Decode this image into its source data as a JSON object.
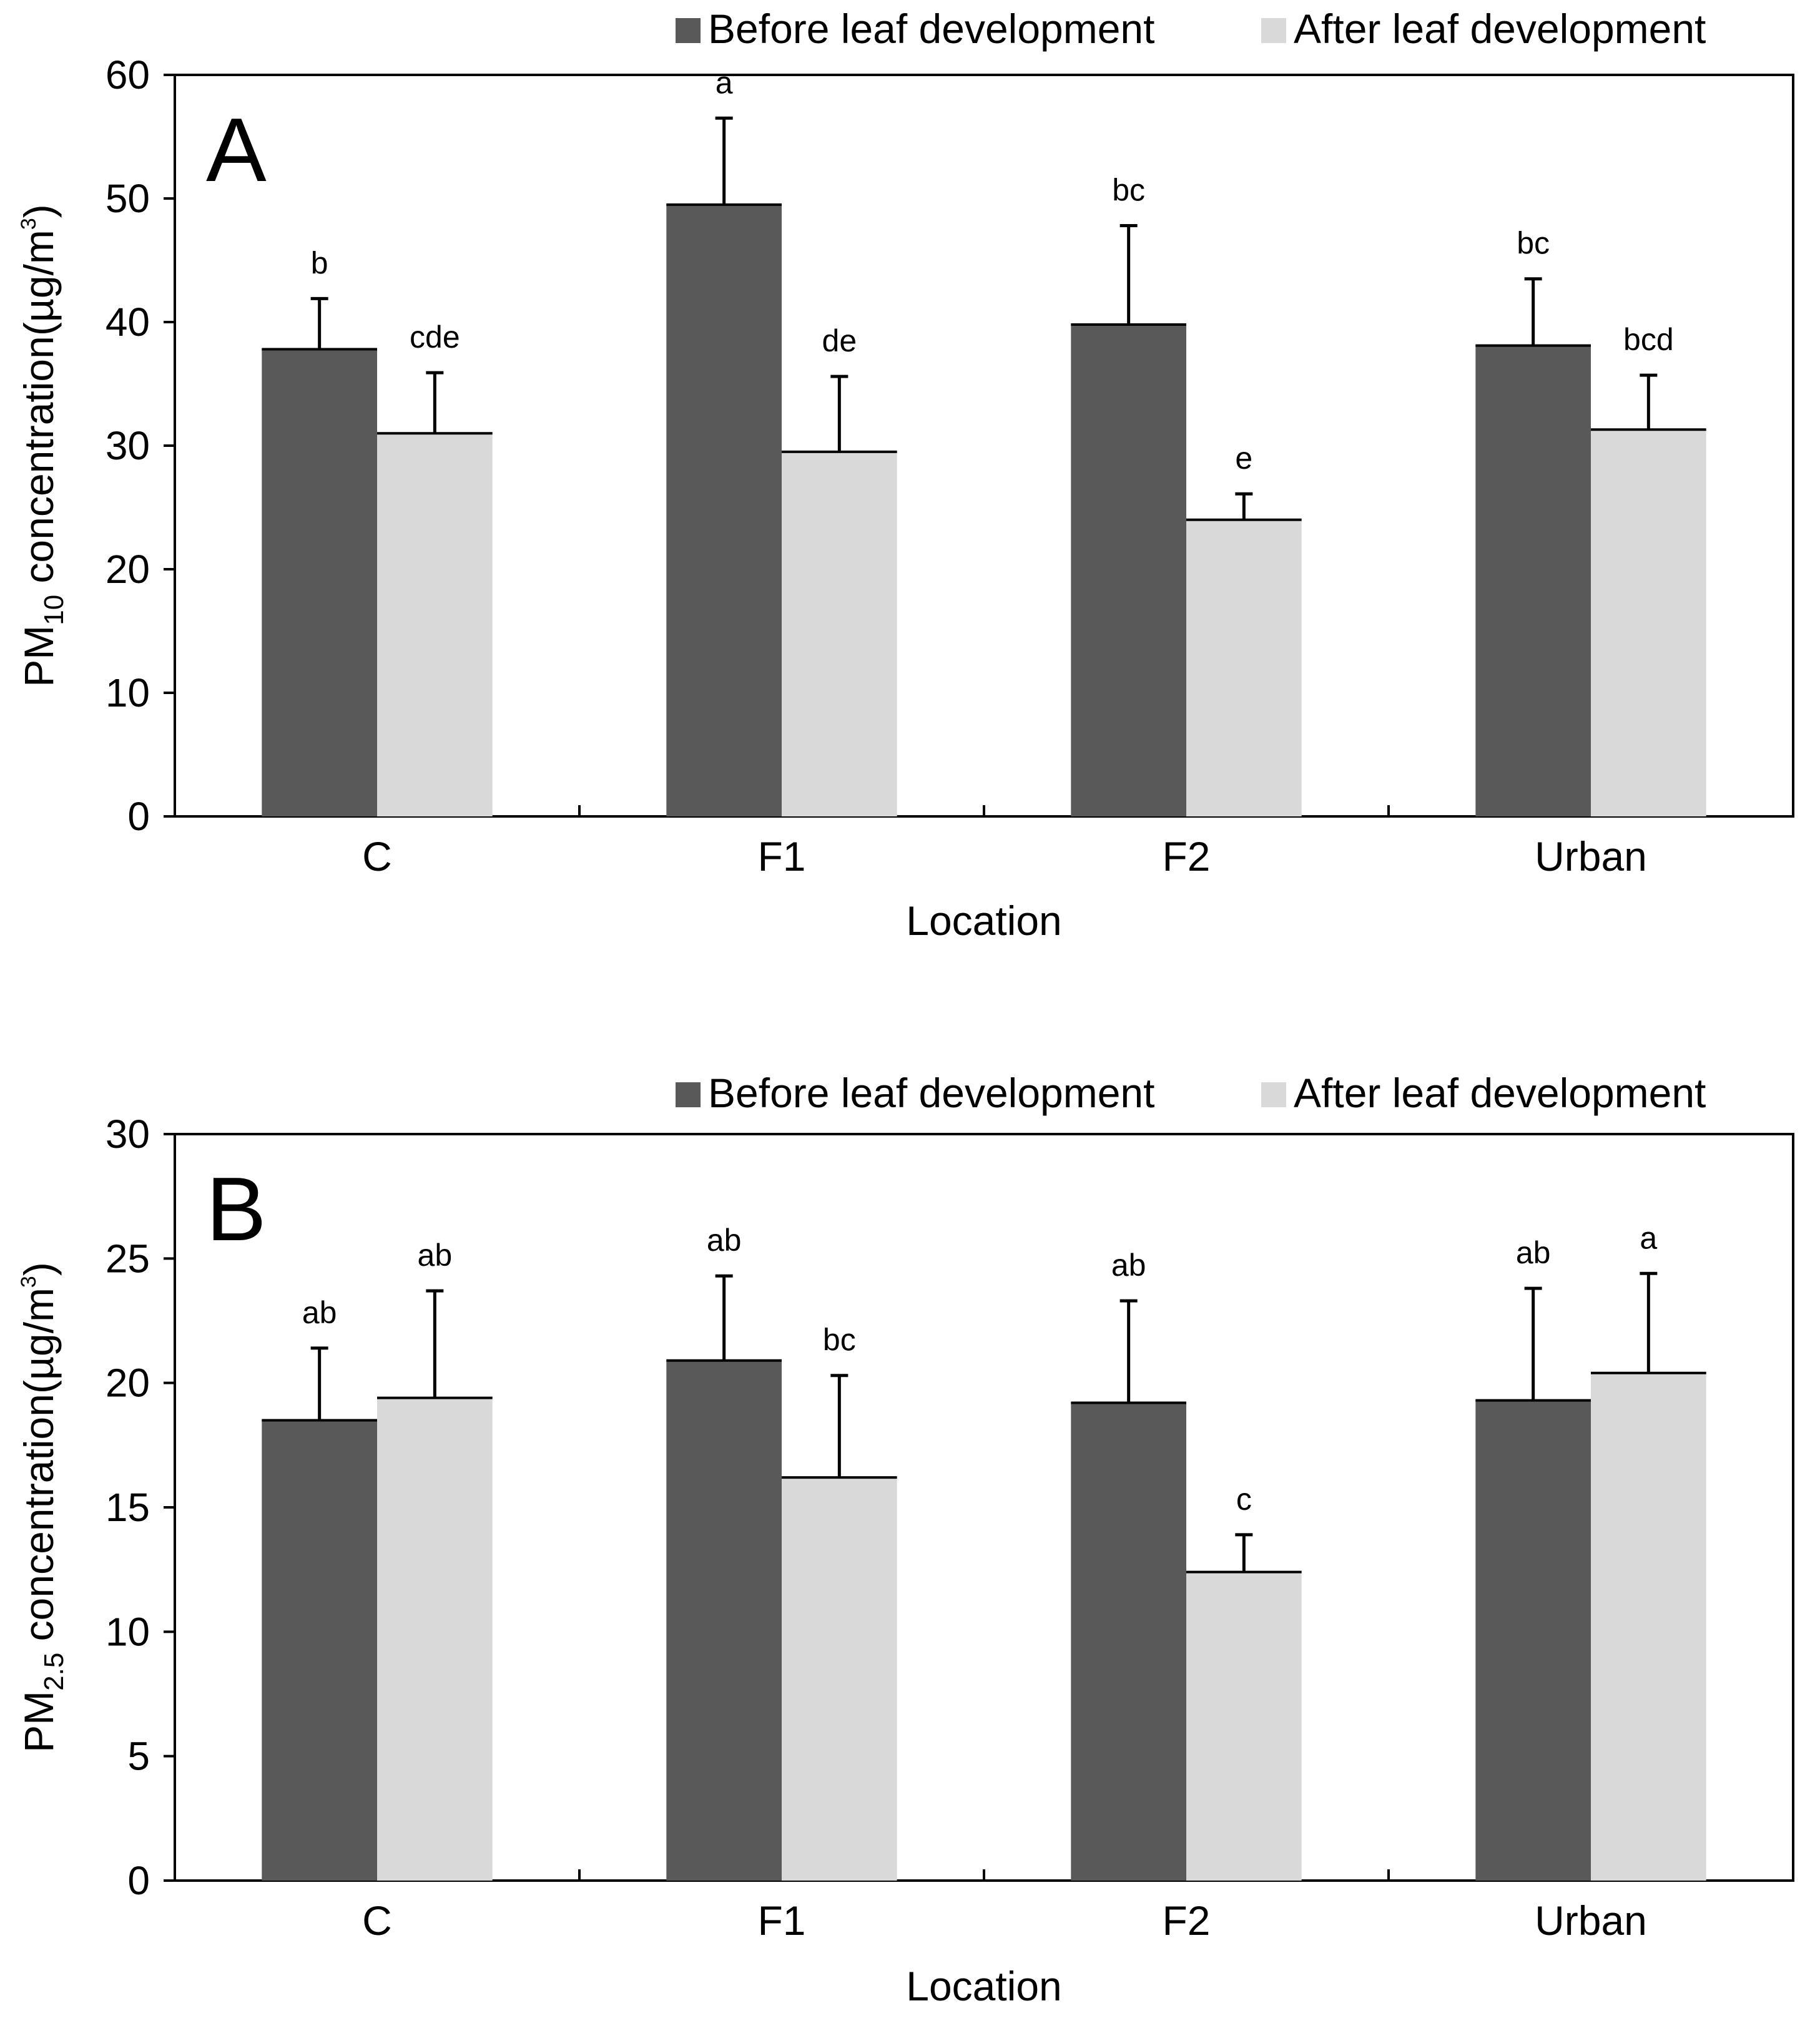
{
  "chart_data": [
    {
      "type": "bar",
      "panel_label": "A",
      "categories": [
        "C",
        "F1",
        "F2",
        "Urban"
      ],
      "xlabel": "Location",
      "ylabel": {
        "prefix": "PM",
        "subscript": "10",
        "suffix": " concentration(µg/m",
        "superscript": "3",
        "close": ")"
      },
      "ylim": [
        0,
        60
      ],
      "yticks": [
        0,
        10,
        20,
        30,
        40,
        50,
        60
      ],
      "series": [
        {
          "name": "Before leaf development",
          "color": "#595959",
          "values": [
            37.8,
            49.5,
            39.8,
            38.1
          ],
          "error": [
            4.1,
            7.0,
            8.0,
            5.4
          ],
          "labels": [
            "b",
            "a",
            "bc",
            "bc"
          ]
        },
        {
          "name": "After leaf development",
          "color": "#d9d9d9",
          "values": [
            31.0,
            29.5,
            24.0,
            31.3
          ],
          "error": [
            4.9,
            6.1,
            2.1,
            4.4
          ],
          "labels": [
            "cde",
            "de",
            "e",
            "bcd"
          ]
        }
      ],
      "legend_position": "top-right",
      "grid": false
    },
    {
      "type": "bar",
      "panel_label": "B",
      "categories": [
        "C",
        "F1",
        "F2",
        "Urban"
      ],
      "xlabel": "Location",
      "ylabel": {
        "prefix": "PM",
        "subscript": "2.5",
        "suffix": " concentration(µg/m",
        "superscript": "3",
        "close": ")"
      },
      "ylim": [
        0,
        30
      ],
      "yticks": [
        0,
        5,
        10,
        15,
        20,
        25,
        30
      ],
      "series": [
        {
          "name": "Before leaf development",
          "color": "#595959",
          "values": [
            18.5,
            20.9,
            19.2,
            19.3
          ],
          "error": [
            2.9,
            3.4,
            4.1,
            4.5
          ],
          "labels": [
            "ab",
            "ab",
            "ab",
            "ab"
          ]
        },
        {
          "name": "After leaf development",
          "color": "#d9d9d9",
          "values": [
            19.4,
            16.2,
            12.4,
            20.4
          ],
          "error": [
            4.3,
            4.1,
            1.5,
            4.0
          ],
          "labels": [
            "ab",
            "bc",
            "c",
            "a"
          ]
        }
      ],
      "legend_position": "top-right",
      "grid": false
    }
  ]
}
